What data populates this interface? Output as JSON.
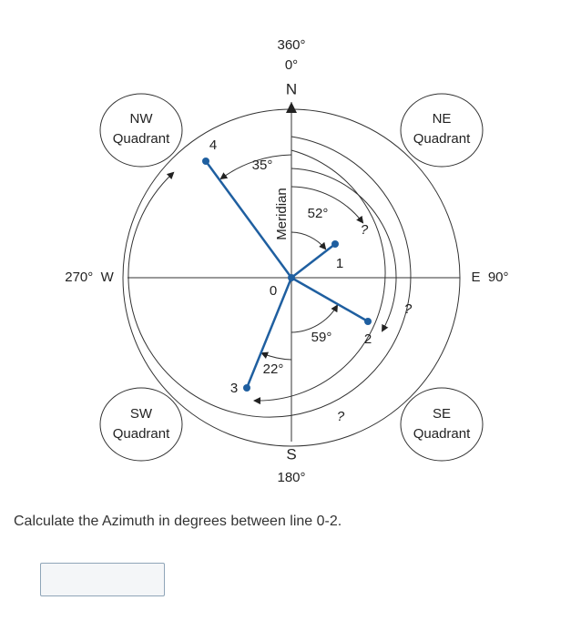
{
  "diagram": {
    "labels": {
      "top_360": "360°",
      "top_0": "0°",
      "north": "N",
      "nw": "NW",
      "nw_quadrant": "Quadrant",
      "ne": "NE",
      "ne_quadrant": "Quadrant",
      "west": "270°  W",
      "east": "E  90°",
      "sw": "SW",
      "sw_quadrant": "Quadrant",
      "se": "SE",
      "se_quadrant": "Quadrant",
      "south": "S",
      "bottom_180": "180°",
      "meridian": "Meridian",
      "point_0": "0",
      "point_1": "1",
      "point_2": "2",
      "point_3": "3",
      "point_4": "4",
      "angle_35": "35°",
      "angle_52": "52°",
      "angle_59": "59°",
      "angle_22": "22°",
      "unknown_1": "?",
      "unknown_2": "?",
      "unknown_3": "?"
    }
  },
  "question": "Calculate the Azimuth in degrees between line 0-2."
}
